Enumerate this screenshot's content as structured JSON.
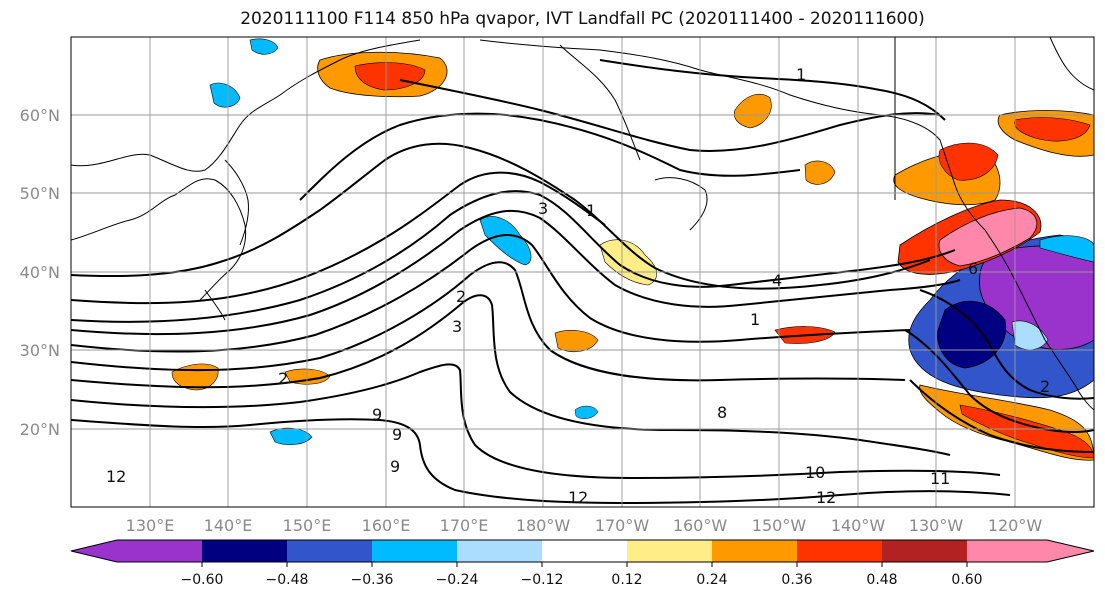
{
  "title": "2020111100 F114 850 hPa qvapor, IVT Landfall PC (2020111400 - 2020111600)",
  "map": {
    "lat_labels": [
      "60°N",
      "50°N",
      "40°N",
      "30°N",
      "20°N"
    ],
    "lon_labels": [
      "130°E",
      "140°E",
      "150°E",
      "160°E",
      "170°E",
      "180°W",
      "170°W",
      "160°W",
      "150°W",
      "140°W",
      "130°W",
      "120°W"
    ],
    "contour_labels": [
      "1",
      "3",
      "1",
      "4",
      "1",
      "6",
      "8",
      "10",
      "11",
      "12",
      "12",
      "12",
      "2",
      "9",
      "9",
      "9",
      "2",
      "3",
      "2"
    ],
    "colors": {
      "contour": "#000000",
      "grid": "#999999"
    }
  },
  "colorbar": {
    "colors": [
      "#9933cc",
      "#000080",
      "#3355cc",
      "#00bbff",
      "#aaddff",
      "#ffffff",
      "#ffee88",
      "#ff9900",
      "#ff3300",
      "#b22222",
      "#ff88aa"
    ],
    "tick_labels": [
      "−0.60",
      "−0.48",
      "−0.36",
      "−0.24",
      "−0.12",
      "0.12",
      "0.24",
      "0.36",
      "0.48",
      "0.60"
    ]
  }
}
